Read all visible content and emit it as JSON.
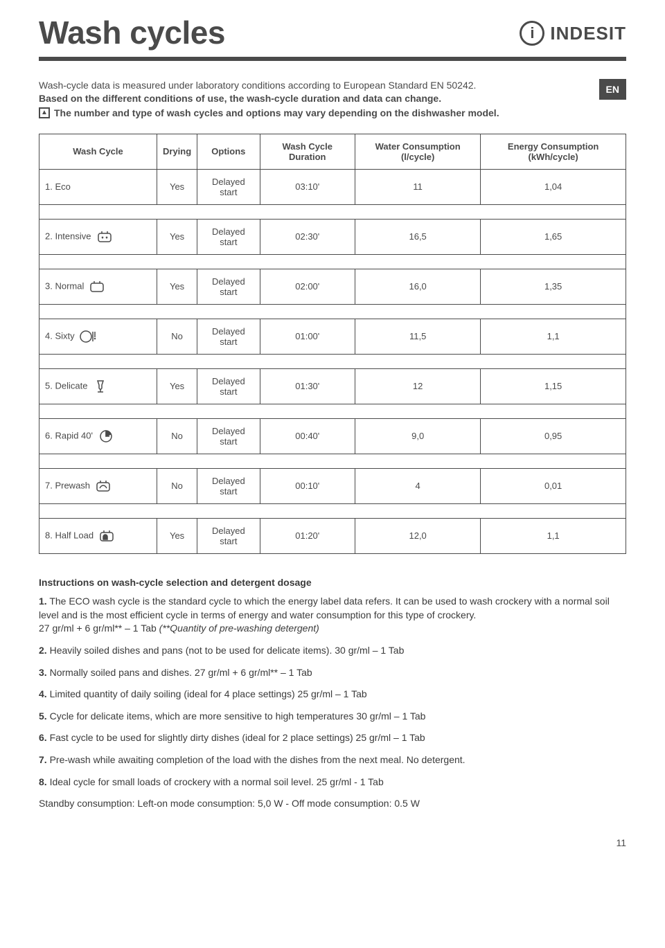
{
  "header": {
    "title": "Wash cycles",
    "logo_text": "INDeSIT",
    "en_badge": "EN"
  },
  "intro": {
    "line1": "Wash-cycle data is measured under laboratory conditions according to European Standard EN 50242.",
    "line2": "Based on the different conditions of use, the wash-cycle duration and data can change.",
    "note": "The  number and type of wash cycles and options may vary depending on the dishwasher model."
  },
  "table": {
    "headers": [
      "Wash Cycle",
      "Drying",
      "Options",
      "Wash Cycle Duration",
      "Water Consumption (l/cycle)",
      "Energy Consumption (kWh/cycle)"
    ],
    "rows": [
      {
        "name": "1. Eco",
        "icon": "",
        "drying": "Yes",
        "options": "Delayed start",
        "duration": "03:10'",
        "water": "11",
        "energy": "1,04"
      },
      {
        "name": "2. Intensive",
        "icon": "intensive",
        "drying": "Yes",
        "options": "Delayed start",
        "duration": "02:30'",
        "water": "16,5",
        "energy": "1,65"
      },
      {
        "name": "3. Normal",
        "icon": "normal",
        "drying": "Yes",
        "options": "Delayed start",
        "duration": "02:00'",
        "water": "16,0",
        "energy": "1,35"
      },
      {
        "name": "4. Sixty",
        "icon": "sixty",
        "drying": "No",
        "options": "Delayed start",
        "duration": "01:00'",
        "water": "11,5",
        "energy": "1,1"
      },
      {
        "name": "5. Delicate",
        "icon": "delicate",
        "drying": "Yes",
        "options": "Delayed start",
        "duration": "01:30'",
        "water": "12",
        "energy": "1,15"
      },
      {
        "name": "6. Rapid 40'",
        "icon": "rapid",
        "drying": "No",
        "options": "Delayed start",
        "duration": "00:40'",
        "water": "9,0",
        "energy": "0,95"
      },
      {
        "name": "7. Prewash",
        "icon": "prewash",
        "drying": "No",
        "options": "Delayed start",
        "duration": "00:10'",
        "water": "4",
        "energy": "0,01"
      },
      {
        "name": "8. Half Load",
        "icon": "halfload",
        "drying": "Yes",
        "options": "Delayed start",
        "duration": "01:20'",
        "water": "12,0",
        "energy": "1,1"
      }
    ]
  },
  "instructions": {
    "heading": "Instructions on wash-cycle selection and detergent dosage",
    "items": [
      {
        "num": "1.",
        "text": " The ECO wash cycle is the standard cycle to which the energy label data refers. It can be used to wash crockery with a normal soil level and is the most efficient cycle in terms of energy and water consumption for this type of crockery.",
        "extra": "27 gr/ml + 6 gr/ml** – 1 Tab ",
        "ital": "(**Quantity of pre-washing detergent)"
      },
      {
        "num": "2.",
        "text": " Heavily soiled dishes and pans (not to be used for delicate items). 30 gr/ml – 1 Tab"
      },
      {
        "num": "3.",
        "text": " Normally soiled pans and dishes. 27 gr/ml + 6 gr/ml** – 1 Tab"
      },
      {
        "num": "4.",
        "text": " Limited quantity of daily soiling (ideal for 4 place settings) 25 gr/ml – 1 Tab"
      },
      {
        "num": "5.",
        "text": " Cycle for delicate items, which are more sensitive to high temperatures 30 gr/ml – 1 Tab"
      },
      {
        "num": "6.",
        "text": " Fast cycle to be used for slightly dirty dishes (ideal for 2 place settings) 25 gr/ml – 1 Tab"
      },
      {
        "num": "7.",
        "text": " Pre-wash while awaiting completion of the load with the dishes from the next meal. No detergent."
      },
      {
        "num": "8.",
        "text": " Ideal cycle for small loads of crockery with a normal soil level. 25 gr/ml - 1 Tab"
      }
    ],
    "standby": "Standby  consumption: Left-on  mode  consumption: 5,0 W - Off  mode  consumption: 0.5 W"
  },
  "page_number": "11",
  "style": {
    "text_color": "#4a4a4a",
    "border_color": "#4a4a4a",
    "badge_bg": "#4a4a4a",
    "badge_fg": "#ffffff",
    "title_fontsize": 46,
    "body_fontsize": 14,
    "table_fontsize": 13
  }
}
